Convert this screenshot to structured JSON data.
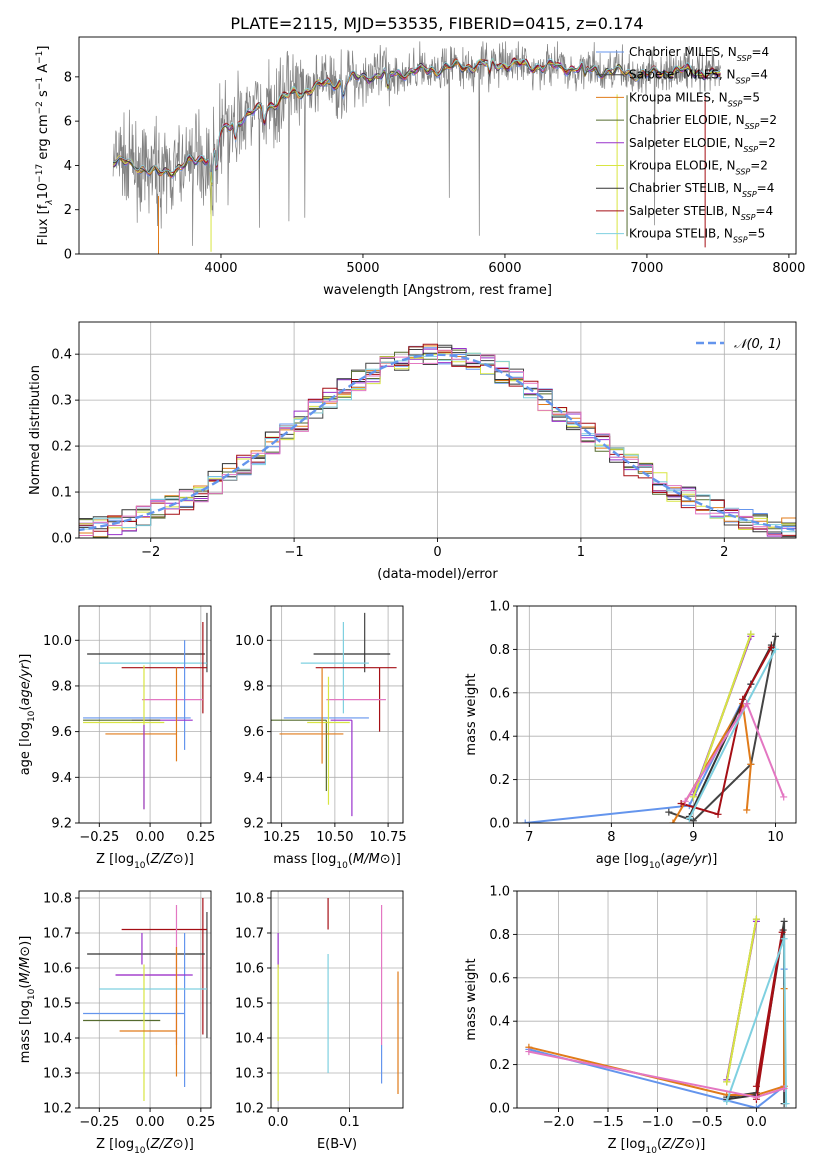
{
  "figure_title": "PLATE=2115, MJD=53535, FIBERID=0415, z=0.174",
  "colors": {
    "chabrier_miles": "#6495ed",
    "salpeter_miles": "#444444",
    "kroupa_miles": "#e07b1a",
    "chabrier_elodie": "#556b2f",
    "salpeter_elodie": "#9932cc",
    "kroupa_elodie": "#d8e542",
    "chabrier_stelib": "#333333",
    "salpeter_stelib": "#a50f15",
    "kroupa_stelib": "#7fd0e0",
    "pink": "#e377c2",
    "gray": "#808080",
    "grid": "#b0b0b0"
  },
  "chart_data": [
    {
      "type": "line",
      "name": "spectrum",
      "title": "PLATE=2115, MJD=53535, FIBERID=0415, z=0.174",
      "xlabel": "wavelength [Angstrom, rest frame]",
      "ylabel_parts": [
        "Flux [f",
        "λ",
        "10",
        "−17",
        " erg cm",
        "−2",
        " s",
        "−1",
        " A",
        "−1",
        "]"
      ],
      "xlim": [
        3000,
        8050
      ],
      "ylim": [
        0,
        9.8
      ],
      "xticks": [
        4000,
        5000,
        6000,
        7000,
        8000
      ],
      "yticks": [
        0,
        2,
        4,
        6,
        8
      ],
      "grid": false,
      "legend_placement": "top-right",
      "legend": [
        {
          "text": "Chabrier MILES, N",
          "sub": "SSP",
          "tail": "=4",
          "color": "#6495ed"
        },
        {
          "text": "Salpeter MILES, N",
          "sub": "SSP",
          "tail": "=4",
          "color": "#444444"
        },
        {
          "text": "Kroupa MILES, N",
          "sub": "SSP",
          "tail": "=5",
          "color": "#e07b1a"
        },
        {
          "text": "Chabrier ELODIE, N",
          "sub": "SSP",
          "tail": "=2",
          "color": "#556b2f"
        },
        {
          "text": "Salpeter ELODIE, N",
          "sub": "SSP",
          "tail": "=2",
          "color": "#9932cc"
        },
        {
          "text": "Kroupa ELODIE, N",
          "sub": "SSP",
          "tail": "=2",
          "color": "#d8e542"
        },
        {
          "text": "Chabrier STELIB, N",
          "sub": "SSP",
          "tail": "=4",
          "color": "#333333"
        },
        {
          "text": "Salpeter STELIB, N",
          "sub": "SSP",
          "tail": "=4",
          "color": "#a50f15"
        },
        {
          "text": "Kroupa STELIB, N",
          "sub": "SSP",
          "tail": "=5",
          "color": "#7fd0e0"
        }
      ],
      "continuum_anchors": {
        "x": [
          3240,
          3400,
          3550,
          3700,
          3900,
          4000,
          4100,
          4300,
          4500,
          4700,
          5000,
          5300,
          5600,
          5900,
          6200,
          6500,
          6800,
          7000,
          7200,
          7400,
          7520
        ],
        "y": [
          4.2,
          4.0,
          3.6,
          3.9,
          4.4,
          5.4,
          6.0,
          6.6,
          7.2,
          7.6,
          8.0,
          8.2,
          8.4,
          8.6,
          8.5,
          8.4,
          8.2,
          8.1,
          8.3,
          8.2,
          8.0
        ]
      }
    },
    {
      "type": "line",
      "name": "residual-histogram",
      "xlabel": "(data-model)/error",
      "ylabel": "Normed distribution",
      "xlim": [
        -2.5,
        2.5
      ],
      "ylim": [
        0,
        0.47
      ],
      "xticks": [
        -2,
        -1,
        0,
        1,
        2
      ],
      "yticks": [
        0.0,
        0.1,
        0.2,
        0.3,
        0.4
      ],
      "grid": true,
      "legend_placement": "top-right",
      "legend": [
        {
          "text": "𝒩(0, 1)",
          "color": "#6495ed",
          "style": "dashed"
        }
      ],
      "bin_width": 0.1
    },
    {
      "type": "scatter",
      "name": "age-vs-z",
      "xlabel": "Z [log10(Z/Z⊙)]",
      "ylabel": "age  [log10(age/yr)]",
      "xlim": [
        -0.35,
        0.3
      ],
      "ylim": [
        9.2,
        10.15
      ],
      "xticks": [
        -0.25,
        0.0,
        0.25
      ],
      "yticks": [
        9.2,
        9.4,
        9.6,
        9.8,
        10.0
      ],
      "grid": true,
      "points": [
        {
          "x": 0.28,
          "y": 10.02,
          "xerr": 0,
          "yerr_lo": 0.16,
          "yerr_hi": 0.1,
          "color": "#444444"
        },
        {
          "x": 0.27,
          "y": 9.94,
          "xerr_lo": 0.58,
          "xerr_hi": 0.0,
          "yerr_lo": 0.0,
          "yerr_hi": 0.0,
          "color": "#333333"
        },
        {
          "x": 0.25,
          "y": 9.9,
          "xerr_lo": 0.5,
          "xerr_hi": 0.03,
          "yerr": 0,
          "color": "#7fd0e0"
        },
        {
          "x": 0.26,
          "y": 9.88,
          "xerr_lo": 0.4,
          "xerr_hi": 0.02,
          "yerr_lo": 0.2,
          "yerr_hi": 0.2,
          "color": "#a50f15"
        },
        {
          "x": -0.04,
          "y": 9.74,
          "xerr_lo": 0.0,
          "xerr_hi": 0.3,
          "yerr": 0,
          "color": "#e377c2"
        },
        {
          "x": 0.17,
          "y": 9.66,
          "xerr_lo": 0.5,
          "xerr_hi": 0.03,
          "yerr_lo": 0.14,
          "yerr_hi": 0.34,
          "color": "#6495ed"
        },
        {
          "x": 0.21,
          "y": 9.65,
          "xerr_lo": 0.3,
          "xerr_hi": 0.0,
          "yerr_lo": 0.0,
          "yerr_hi": 0.0,
          "color": "#9932cc"
        },
        {
          "x": 0.05,
          "y": 9.65,
          "xerr_lo": 0.38,
          "xerr_hi": 0.0,
          "yerr": 0,
          "color": "#556b2f"
        },
        {
          "x": -0.03,
          "y": 9.64,
          "xerr_lo": 0.3,
          "xerr_hi": 0.1,
          "yerr_lo": 0.38,
          "yerr_hi": 0.25,
          "color": "#d8e542"
        },
        {
          "x": 0.13,
          "y": 9.59,
          "xerr_lo": 0.35,
          "xerr_hi": 0.0,
          "yerr_lo": 0.12,
          "yerr_hi": 0.29,
          "color": "#e07b1a"
        },
        {
          "x": -0.03,
          "y": 9.63,
          "xerr": 0,
          "yerr_lo": 0.37,
          "yerr_hi": 0.0,
          "color": "#9932cc"
        }
      ]
    },
    {
      "type": "scatter",
      "name": "age-vs-mass",
      "xlabel": "mass [log10(M/M⊙)]",
      "ylabel": "",
      "xlim": [
        10.2,
        10.82
      ],
      "ylim": [
        9.2,
        10.15
      ],
      "xticks": [
        10.25,
        10.5,
        10.75
      ],
      "yticks": [
        9.2,
        9.4,
        9.6,
        9.8,
        10.0
      ],
      "grid": true,
      "points": [
        {
          "x": 10.64,
          "y": 10.02,
          "xerr": 0,
          "yerr_lo": 0.16,
          "yerr_hi": 0.1,
          "color": "#444444"
        },
        {
          "x": 10.54,
          "y": 9.94,
          "xerr_lo": 0.14,
          "xerr_hi": 0.22,
          "yerr": 0,
          "color": "#333333"
        },
        {
          "x": 10.54,
          "y": 9.9,
          "xerr_lo": 0.2,
          "xerr_hi": 0.12,
          "yerr_lo": 0.22,
          "yerr_hi": 0.18,
          "color": "#7fd0e0"
        },
        {
          "x": 10.71,
          "y": 9.88,
          "xerr_lo": 0.3,
          "xerr_hi": 0.08,
          "yerr_lo": 0.28,
          "yerr_hi": 0.0,
          "color": "#a50f15"
        },
        {
          "x": 10.58,
          "y": 9.74,
          "xerr_lo": 0.12,
          "xerr_hi": 0.16,
          "yerr": 0,
          "color": "#e377c2"
        },
        {
          "x": 10.46,
          "y": 9.66,
          "xerr_lo": 0.2,
          "xerr_hi": 0.2,
          "yerr": 0,
          "color": "#6495ed"
        },
        {
          "x": 10.58,
          "y": 9.65,
          "xerr_lo": 0.1,
          "xerr_hi": 0.0,
          "yerr_lo": 0.42,
          "yerr_hi": 0.0,
          "color": "#9932cc"
        },
        {
          "x": 10.46,
          "y": 9.65,
          "xerr_lo": 0.26,
          "xerr_hi": 0.0,
          "yerr_lo": 0.31,
          "yerr_hi": 0.0,
          "color": "#556b2f"
        },
        {
          "x": 10.47,
          "y": 9.64,
          "xerr_lo": 0.1,
          "xerr_hi": 0.1,
          "yerr_lo": 0.36,
          "yerr_hi": 0.2,
          "color": "#d8e542"
        },
        {
          "x": 10.44,
          "y": 9.59,
          "xerr_lo": 0.2,
          "xerr_hi": 0.1,
          "yerr_lo": 0.13,
          "yerr_hi": 0.29,
          "color": "#e07b1a"
        }
      ]
    },
    {
      "type": "line",
      "name": "mass-weight-vs-age",
      "xlabel": "age  [log10(age/yr)]",
      "ylabel": "mass weight",
      "xlim": [
        6.85,
        10.25
      ],
      "ylim": [
        0,
        1.0
      ],
      "xticks": [
        7,
        8,
        9,
        10
      ],
      "yticks": [
        0.0,
        0.2,
        0.4,
        0.6,
        0.8,
        1.0
      ],
      "grid": true,
      "series": [
        {
          "color": "#6495ed",
          "x": [
            6.95,
            8.95,
            9.7
          ],
          "y": [
            0.0,
            0.08,
            0.64
          ]
        },
        {
          "color": "#444444",
          "x": [
            8.7,
            9.0,
            9.7,
            10.0
          ],
          "y": [
            0.05,
            0.01,
            0.27,
            0.86
          ]
        },
        {
          "color": "#e07b1a",
          "x": [
            8.75,
            9.6,
            9.7,
            9.65
          ],
          "y": [
            0.0,
            0.55,
            0.27,
            0.06
          ]
        },
        {
          "color": "#556b2f",
          "x": [
            9.0,
            9.7
          ],
          "y": [
            0.12,
            0.87
          ]
        },
        {
          "color": "#9932cc",
          "x": [
            9.0,
            9.7
          ],
          "y": [
            0.13,
            0.86
          ]
        },
        {
          "color": "#d8e542",
          "x": [
            9.0,
            9.7
          ],
          "y": [
            0.12,
            0.87
          ]
        },
        {
          "color": "#333333",
          "x": [
            8.95,
            9.7,
            9.95
          ],
          "y": [
            0.03,
            0.64,
            0.82
          ]
        },
        {
          "color": "#a50f15",
          "x": [
            8.85,
            9.3,
            9.6,
            9.95
          ],
          "y": [
            0.09,
            0.04,
            0.57,
            0.81
          ]
        },
        {
          "color": "#7fd0e0",
          "x": [
            8.95,
            9.65,
            10.0
          ],
          "y": [
            0.02,
            0.55,
            0.8
          ]
        },
        {
          "color": "#e377c2",
          "x": [
            8.9,
            9.65,
            10.1
          ],
          "y": [
            0.1,
            0.55,
            0.12
          ]
        }
      ]
    },
    {
      "type": "scatter",
      "name": "mass-vs-z",
      "xlabel": "Z [log10(Z/Z⊙)]",
      "ylabel": "mass [log10(M/M⊙)]",
      "xlim": [
        -0.35,
        0.3
      ],
      "ylim": [
        10.2,
        10.82
      ],
      "xticks": [
        -0.25,
        0.0,
        0.25
      ],
      "yticks": [
        10.2,
        10.3,
        10.4,
        10.5,
        10.6,
        10.7,
        10.8
      ],
      "grid": true,
      "points": [
        {
          "x": 0.28,
          "y": 10.64,
          "xerr_lo": 0.0,
          "xerr_hi": 0.0,
          "yerr_lo": 0.24,
          "yerr_hi": 0.12,
          "color": "#444444"
        },
        {
          "x": 0.26,
          "y": 10.71,
          "xerr_lo": 0.4,
          "xerr_hi": 0.02,
          "yerr_lo": 0.3,
          "yerr_hi": 0.09,
          "color": "#a50f15"
        },
        {
          "x": 0.27,
          "y": 10.64,
          "xerr_lo": 0.58,
          "xerr_hi": 0.0,
          "yerr": 0,
          "color": "#333333"
        },
        {
          "x": -0.04,
          "y": 10.67,
          "xerr_lo": 0.0,
          "xerr_hi": 0.0,
          "yerr_lo": 0.06,
          "yerr_hi": 0.03,
          "color": "#9932cc"
        },
        {
          "x": 0.17,
          "y": 10.62,
          "xerr_lo": 0.0,
          "xerr_hi": 0.0,
          "yerr_lo": 0.36,
          "yerr_hi": 0.08,
          "color": "#6495ed"
        },
        {
          "x": 0.13,
          "y": 10.58,
          "xerr_lo": 0.3,
          "xerr_hi": 0.0,
          "yerr_lo": 0.2,
          "yerr_hi": 0.2,
          "color": "#e377c2"
        },
        {
          "x": 0.21,
          "y": 10.58,
          "xerr_lo": 0.38,
          "xerr_hi": 0.0,
          "yerr": 0,
          "color": "#9932cc"
        },
        {
          "x": 0.25,
          "y": 10.54,
          "xerr_lo": 0.5,
          "xerr_hi": 0.03,
          "yerr": 0,
          "color": "#7fd0e0"
        },
        {
          "x": 0.17,
          "y": 10.47,
          "xerr_lo": 0.5,
          "xerr_hi": 0.0,
          "yerr": 0,
          "color": "#6495ed"
        },
        {
          "x": 0.05,
          "y": 10.45,
          "xerr_lo": 0.38,
          "xerr_hi": 0.0,
          "yerr": 0,
          "color": "#556b2f"
        },
        {
          "x": -0.03,
          "y": 10.47,
          "xerr_lo": 0.0,
          "xerr_hi": 0.0,
          "yerr_lo": 0.25,
          "yerr_hi": 0.14,
          "color": "#d8e542"
        },
        {
          "x": 0.13,
          "y": 10.42,
          "xerr_lo": 0.28,
          "xerr_hi": 0.0,
          "yerr_lo": 0.13,
          "yerr_hi": 0.24,
          "color": "#e07b1a"
        }
      ]
    },
    {
      "type": "scatter",
      "name": "mass-vs-ebv",
      "xlabel": "E(B-V)",
      "ylabel": "",
      "xlim": [
        -0.01,
        0.175
      ],
      "ylim": [
        10.2,
        10.82
      ],
      "xticks": [
        0.0,
        0.1
      ],
      "yticks": [
        10.2,
        10.3,
        10.4,
        10.5,
        10.6,
        10.7,
        10.8
      ],
      "grid": true,
      "points": [
        {
          "x": 0.0,
          "y": 10.62,
          "yerr_lo": 0.02,
          "yerr_hi": 0.08,
          "color": "#9932cc"
        },
        {
          "x": 0.0,
          "y": 10.47,
          "yerr_lo": 0.25,
          "yerr_hi": 0.14,
          "color": "#d8e542"
        },
        {
          "x": 0.07,
          "y": 10.71,
          "yerr_lo": 0.0,
          "yerr_hi": 0.09,
          "color": "#a50f15"
        },
        {
          "x": 0.07,
          "y": 10.54,
          "yerr_lo": 0.24,
          "yerr_hi": 0.1,
          "color": "#7fd0e0"
        },
        {
          "x": 0.145,
          "y": 10.58,
          "yerr_lo": 0.2,
          "yerr_hi": 0.2,
          "color": "#e377c2"
        },
        {
          "x": 0.145,
          "y": 10.38,
          "yerr_lo": 0.11,
          "yerr_hi": 0.0,
          "color": "#6495ed"
        },
        {
          "x": 0.168,
          "y": 10.42,
          "yerr_lo": 0.18,
          "yerr_hi": 0.17,
          "color": "#e07b1a"
        }
      ]
    },
    {
      "type": "line",
      "name": "mass-weight-vs-z",
      "xlabel": "Z [log10(Z/Z⊙)]",
      "ylabel": "mass weight",
      "xlim": [
        -2.42,
        0.4
      ],
      "ylim": [
        0,
        1.0
      ],
      "xticks": [
        -2.0,
        -1.5,
        -1.0,
        -0.5,
        0.0
      ],
      "yticks": [
        0.0,
        0.2,
        0.4,
        0.6,
        0.8,
        1.0
      ],
      "grid": true,
      "series": [
        {
          "color": "#6495ed",
          "x": [
            -2.3,
            0.0,
            0.28,
            0.28
          ],
          "y": [
            0.27,
            0.0,
            0.1,
            0.64
          ]
        },
        {
          "color": "#444444",
          "x": [
            -0.3,
            0.0,
            0.28,
            0.28
          ],
          "y": [
            0.05,
            0.07,
            0.86,
            0.02
          ]
        },
        {
          "color": "#e07b1a",
          "x": [
            -2.3,
            -0.3,
            0.0,
            0.28,
            0.28
          ],
          "y": [
            0.28,
            0.06,
            0.06,
            0.1,
            0.55
          ]
        },
        {
          "color": "#556b2f",
          "x": [
            -0.3,
            0.0
          ],
          "y": [
            0.12,
            0.87
          ]
        },
        {
          "color": "#9932cc",
          "x": [
            -0.3,
            0.0
          ],
          "y": [
            0.13,
            0.86
          ]
        },
        {
          "color": "#d8e542",
          "x": [
            -0.3,
            0.0
          ],
          "y": [
            0.12,
            0.87
          ]
        },
        {
          "color": "#333333",
          "x": [
            -0.3,
            0.0,
            0.27
          ],
          "y": [
            0.04,
            0.06,
            0.82
          ]
        },
        {
          "color": "#a50f15",
          "x": [
            0.0,
            0.26,
            0.0
          ],
          "y": [
            0.1,
            0.81,
            0.04
          ]
        },
        {
          "color": "#7fd0e0",
          "x": [
            -0.3,
            0.28,
            0.3
          ],
          "y": [
            0.03,
            0.78,
            0.02
          ]
        },
        {
          "color": "#e377c2",
          "x": [
            -2.3,
            0.0,
            0.28
          ],
          "y": [
            0.26,
            0.05,
            0.09
          ]
        }
      ]
    }
  ]
}
